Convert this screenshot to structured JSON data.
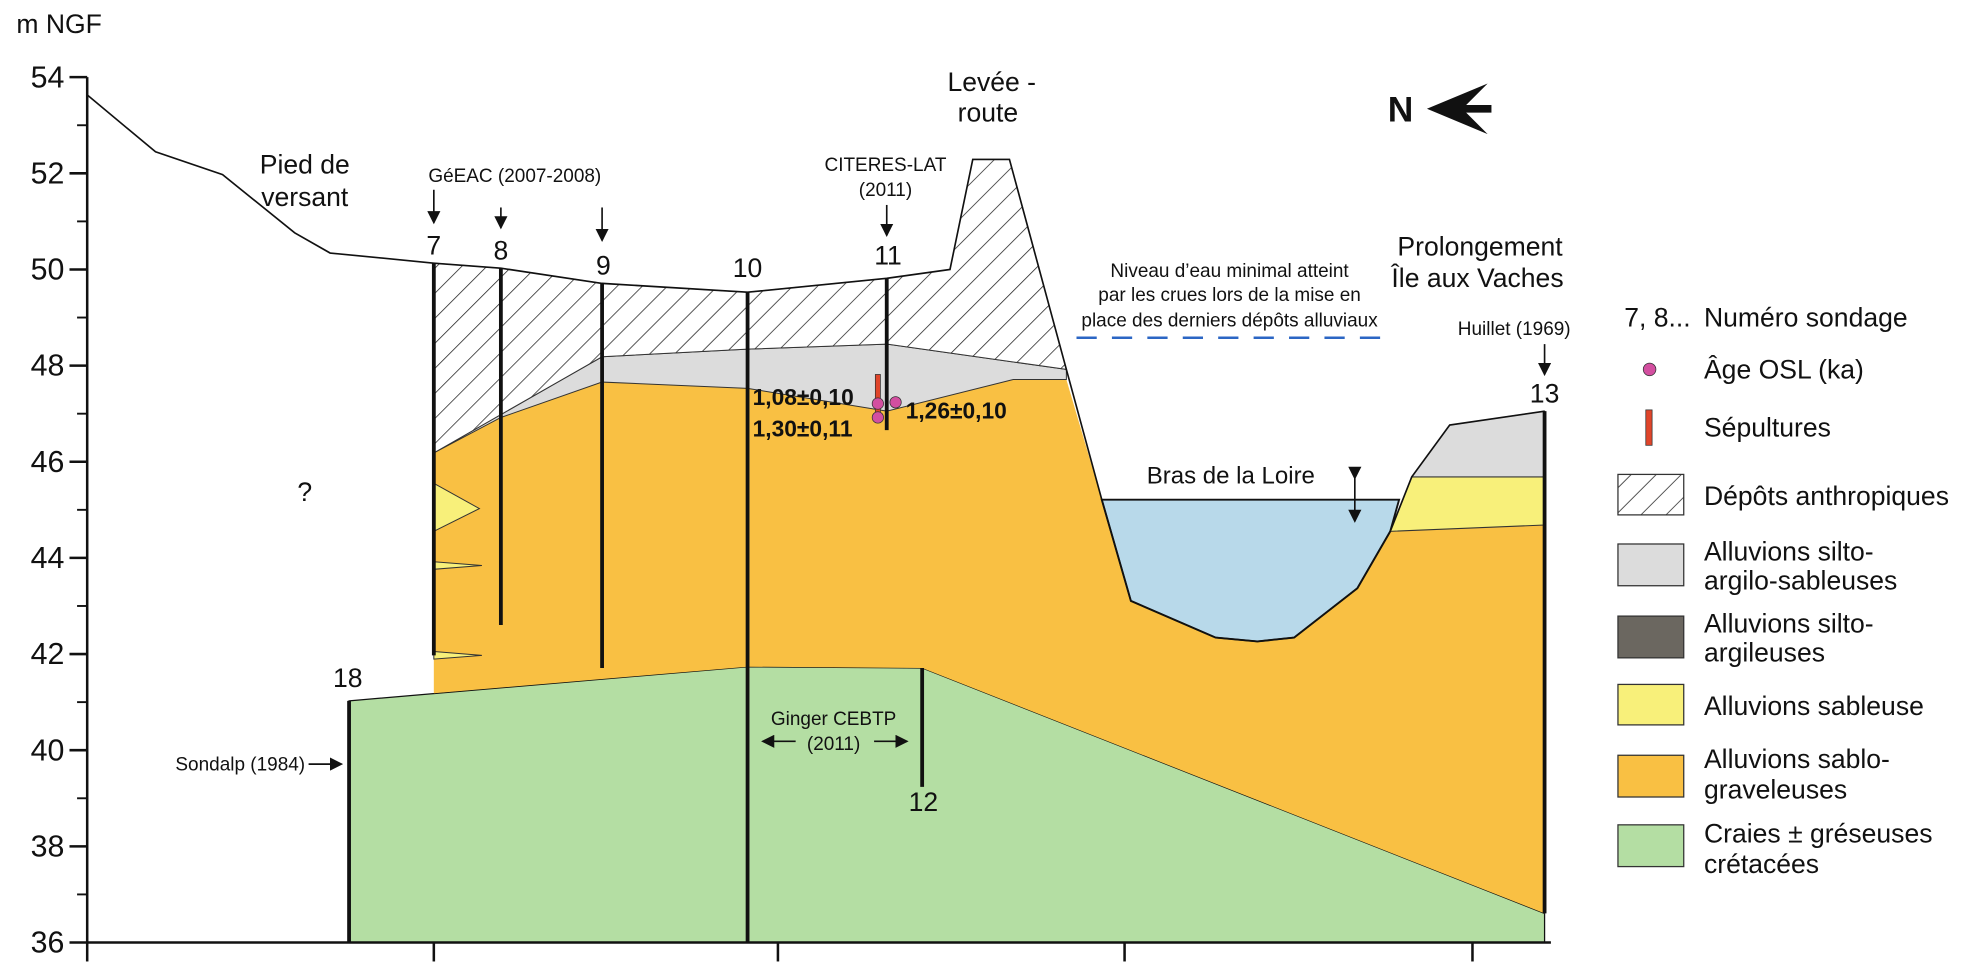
{
  "axis": {
    "label": "m NGF",
    "ylim": [
      36,
      54
    ],
    "yticks": [
      36,
      38,
      40,
      42,
      44,
      46,
      48,
      50,
      52,
      54
    ]
  },
  "north": "N",
  "places": {
    "pied_de_versant": [
      "Pied de",
      "versant"
    ],
    "levee": [
      "Levée -",
      "route"
    ],
    "prolongement": [
      "Prolongement",
      "Île aux Vaches"
    ],
    "bras": "Bras de la Loire",
    "unknown": "?",
    "niveau": [
      "Niveau d’eau minimal atteint",
      "par les crues lors de la mise en",
      "place des derniers dépôts alluviaux"
    ]
  },
  "sources": {
    "geeac": "GéEAC (2007-2008)",
    "citeres": [
      "CITERES-LAT",
      "(2011)"
    ],
    "huillet": "Huillet (1969)",
    "sondalp": "Sondalp (1984)",
    "ginger": [
      "Ginger CEBTP",
      "(2011)"
    ]
  },
  "boreholes": [
    "7",
    "8",
    "9",
    "10",
    "11",
    "12",
    "13",
    "18"
  ],
  "osl_ages": [
    "1,08±0,10",
    "1,30±0,11",
    "1,26±0,10"
  ],
  "legend": {
    "numero_symbol": "7, 8...",
    "numero": "Numéro sondage",
    "osl": "Âge OSL (ka)",
    "sepultures": "Sépultures",
    "anthropiques": "Dépôts anthropiques",
    "silto_argilo_sableuses": [
      "Alluvions silto-",
      "argilo-sableuses"
    ],
    "silto_argileuses": [
      "Alluvions silto-",
      "argileuses"
    ],
    "sableuse": "Alluvions sableuse",
    "sablo_graveleuses": [
      "Alluvions sablo-",
      "graveleuses"
    ],
    "craies": [
      "Craies ± gréseuses",
      "crétacées"
    ]
  }
}
